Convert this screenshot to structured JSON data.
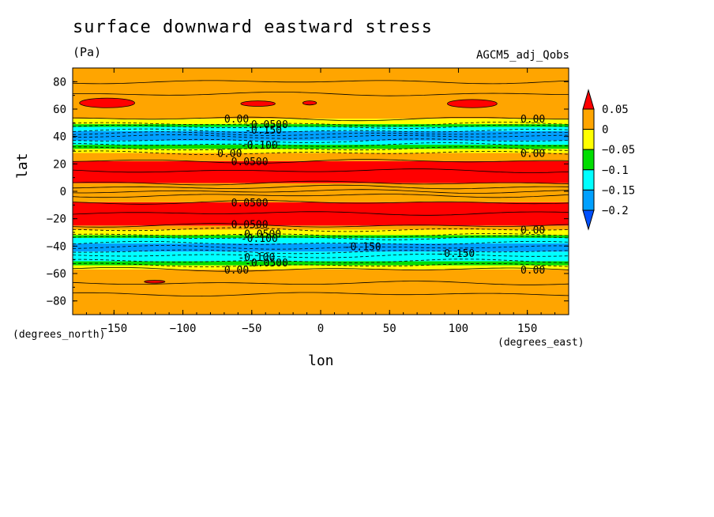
{
  "chart_data": {
    "type": "heatmap",
    "title": "surface downward eastward stress",
    "units": "(Pa)",
    "source_label": "AGCM5_adj_Qobs",
    "xlabel": "lon",
    "ylabel": "lat",
    "x_unit": "(degrees_east)",
    "y_unit": "(degrees_north)",
    "xlim": [
      -180,
      180
    ],
    "ylim": [
      -90,
      90
    ],
    "x_ticks": [
      -150,
      -100,
      -50,
      0,
      50,
      100,
      150
    ],
    "x_tick_labels": [
      "−150",
      "−100",
      "−50",
      "0",
      "50",
      "100",
      "150"
    ],
    "y_ticks": [
      80,
      60,
      40,
      20,
      0,
      -20,
      -40,
      -60,
      -80
    ],
    "y_tick_labels": [
      "80",
      "60",
      "40",
      "20",
      "0",
      "−20",
      "−40",
      "−60",
      "−80"
    ],
    "colorbar": {
      "levels": [
        0.05,
        0,
        -0.05,
        -0.1,
        -0.15,
        -0.2
      ],
      "labels": [
        "0.05",
        "0",
        "−0.05",
        "−0.1",
        "−0.15",
        "−0.2"
      ],
      "colors": {
        "gt_0.05": "#ff0000",
        "0_to_0.05": "#ffa500",
        "-0.05_to_0": "#ffff00",
        "-0.1_to_-0.05": "#00dd00",
        "-0.15_to_-0.1": "#00ffff",
        "-0.2_to_-0.15": "#00a0ff",
        "lt_-0.2": "#0050ff"
      }
    },
    "bands": [
      {
        "lat": [
          -90,
          -57
        ],
        "class": "0_to_0.05"
      },
      {
        "lat": [
          -57,
          -54
        ],
        "class": "-0.05_to_0"
      },
      {
        "lat": [
          -54,
          -51
        ],
        "class": "-0.1_to_-0.05"
      },
      {
        "lat": [
          -51,
          -44
        ],
        "class": "-0.15_to_-0.1"
      },
      {
        "lat": [
          -44,
          -38
        ],
        "class": "-0.2_to_-0.15"
      },
      {
        "lat": [
          -38,
          -34
        ],
        "class": "-0.15_to_-0.1"
      },
      {
        "lat": [
          -34,
          -32
        ],
        "class": "-0.1_to_-0.05"
      },
      {
        "lat": [
          -32,
          -28
        ],
        "class": "-0.05_to_0"
      },
      {
        "lat": [
          -28,
          -25
        ],
        "class": "0_to_0.05"
      },
      {
        "lat": [
          -25,
          -8
        ],
        "class": "gt_0.05"
      },
      {
        "lat": [
          -8,
          6
        ],
        "class": "0_to_0.05"
      },
      {
        "lat": [
          6,
          22
        ],
        "class": "gt_0.05"
      },
      {
        "lat": [
          22,
          28
        ],
        "class": "0_to_0.05"
      },
      {
        "lat": [
          28,
          31
        ],
        "class": "-0.05_to_0"
      },
      {
        "lat": [
          31,
          34
        ],
        "class": "-0.1_to_-0.05"
      },
      {
        "lat": [
          34,
          37
        ],
        "class": "-0.15_to_-0.1"
      },
      {
        "lat": [
          37,
          44
        ],
        "class": "-0.2_to_-0.15"
      },
      {
        "lat": [
          44,
          47
        ],
        "class": "-0.15_to_-0.1"
      },
      {
        "lat": [
          47,
          49
        ],
        "class": "-0.1_to_-0.05"
      },
      {
        "lat": [
          49,
          53
        ],
        "class": "-0.05_to_0"
      },
      {
        "lat": [
          53,
          90
        ],
        "class": "0_to_0.05"
      }
    ],
    "patches": [
      {
        "lon": [
          -175,
          -135
        ],
        "lat": [
          61,
          68
        ],
        "class": "gt_0.05"
      },
      {
        "lon": [
          -58,
          -33
        ],
        "lat": [
          62,
          66
        ],
        "class": "gt_0.05"
      },
      {
        "lon": [
          -13,
          -3
        ],
        "lat": [
          63,
          66
        ],
        "class": "gt_0.05"
      },
      {
        "lon": [
          92,
          128
        ],
        "lat": [
          61,
          67
        ],
        "class": "gt_0.05"
      },
      {
        "lon": [
          -128,
          -113
        ],
        "lat": [
          -67,
          -65
        ],
        "class": "gt_0.05"
      }
    ],
    "contour_labels": [
      {
        "text": "0.00",
        "lon": -70,
        "lat": 53
      },
      {
        "text": "-0.0500",
        "lon": -55,
        "lat": 49
      },
      {
        "text": "-0.150",
        "lon": -55,
        "lat": 45
      },
      {
        "text": "-0.100",
        "lon": -58,
        "lat": 34
      },
      {
        "text": "0.00",
        "lon": -75,
        "lat": 28
      },
      {
        "text": "0.0500",
        "lon": -65,
        "lat": 22
      },
      {
        "text": "0.0500",
        "lon": -65,
        "lat": -8
      },
      {
        "text": "0.0500",
        "lon": -65,
        "lat": -24
      },
      {
        "text": "-0.0500",
        "lon": -60,
        "lat": -31
      },
      {
        "text": "-0.100",
        "lon": -58,
        "lat": -34
      },
      {
        "text": "-0.150",
        "lon": 17,
        "lat": -40
      },
      {
        "text": "-0.150",
        "lon": 85,
        "lat": -45
      },
      {
        "text": "-0.100",
        "lon": -60,
        "lat": -48
      },
      {
        "text": "-0.0500",
        "lon": -55,
        "lat": -52
      },
      {
        "text": "0.00",
        "lon": -70,
        "lat": -57
      },
      {
        "text": "0.00",
        "lon": 145,
        "lat": 53
      },
      {
        "text": "0.00",
        "lon": 145,
        "lat": 28
      },
      {
        "text": "0.00",
        "lon": 145,
        "lat": -28
      },
      {
        "text": "0.00",
        "lon": 145,
        "lat": -57
      }
    ]
  }
}
